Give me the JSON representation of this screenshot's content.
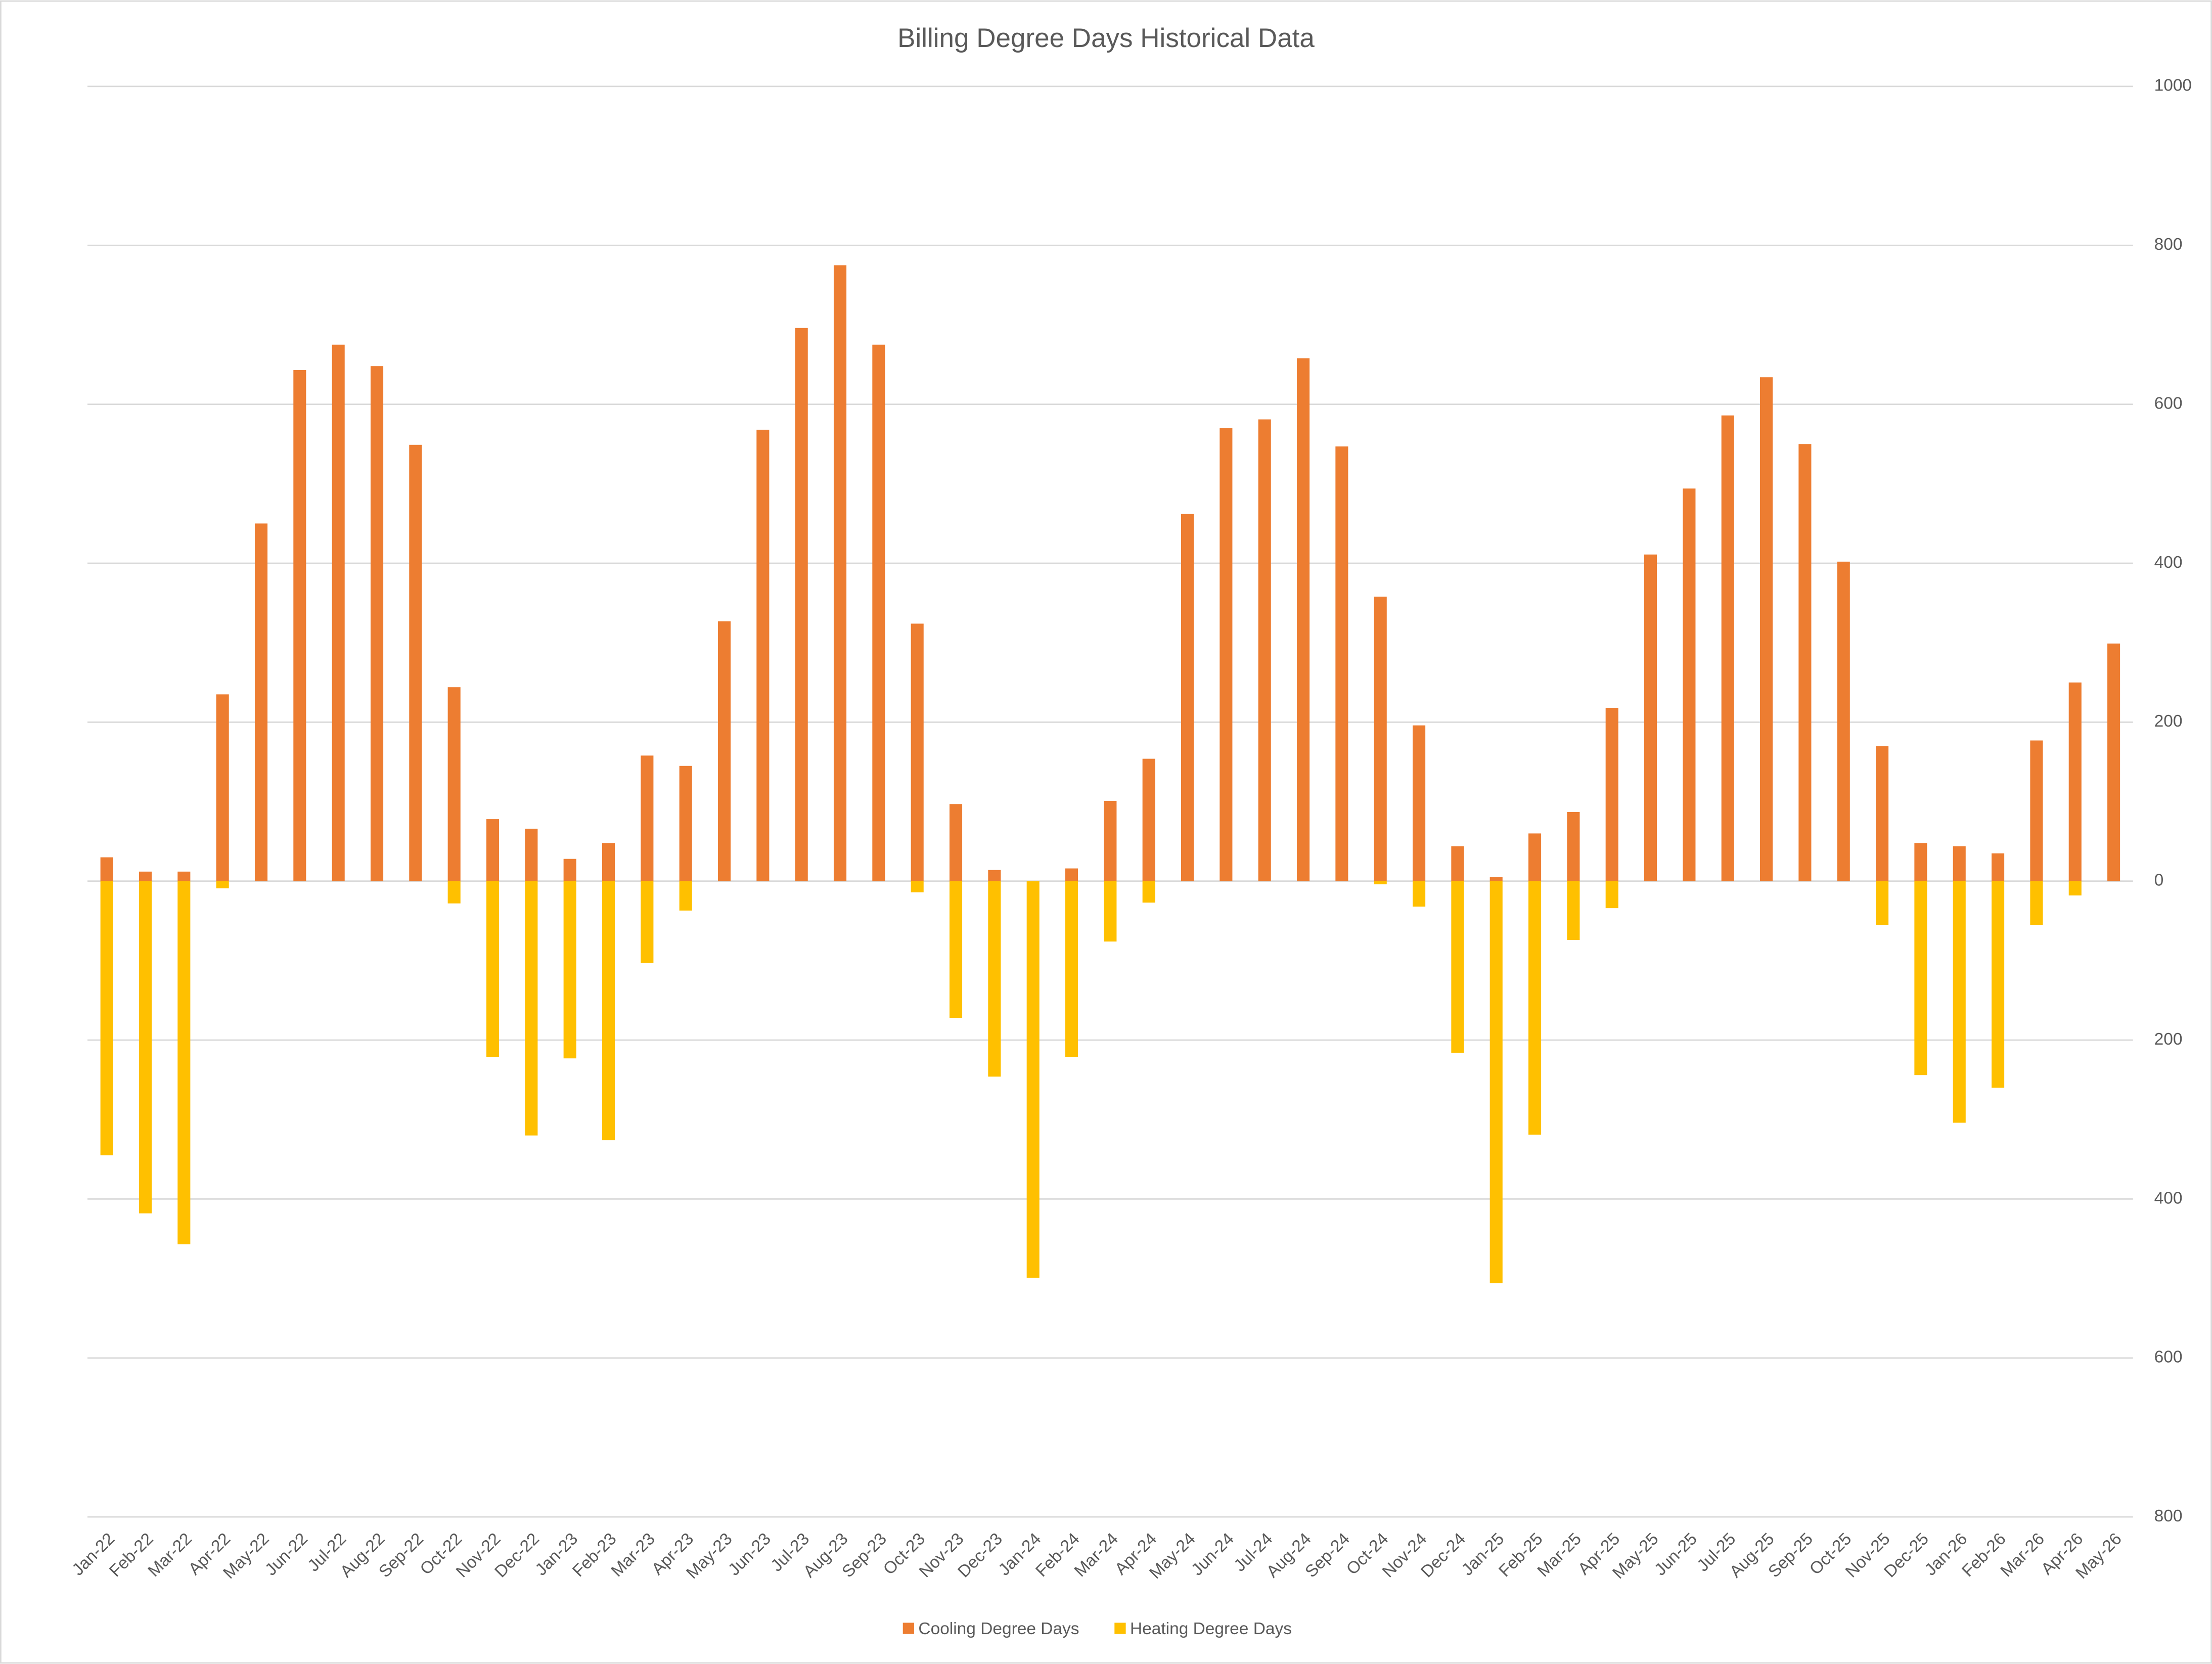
{
  "chart_data": {
    "type": "bar",
    "title": "Billing Degree Days Historical Data",
    "categories": [
      "Jan-22",
      "Feb-22",
      "Mar-22",
      "Apr-22",
      "May-22",
      "Jun-22",
      "Jul-22",
      "Aug-22",
      "Sep-22",
      "Oct-22",
      "Nov-22",
      "Dec-22",
      "Jan-23",
      "Feb-23",
      "Mar-23",
      "Apr-23",
      "May-23",
      "Jun-23",
      "Jul-23",
      "Aug-23",
      "Sep-23",
      "Oct-23",
      "Nov-23",
      "Dec-23",
      "Jan-24",
      "Feb-24",
      "Mar-24",
      "Apr-24",
      "May-24",
      "Jun-24",
      "Jul-24",
      "Aug-24",
      "Sep-24",
      "Oct-24",
      "Nov-24",
      "Dec-24",
      "Jan-25",
      "Feb-25",
      "Mar-25",
      "Apr-25",
      "May-25",
      "Jun-25",
      "Jul-25",
      "Aug-25",
      "Sep-25",
      "Oct-25",
      "Nov-25",
      "Dec-25",
      "Jan-26",
      "Feb-26",
      "Mar-26",
      "Apr-26",
      "May-26"
    ],
    "series": [
      {
        "name": "Cooling Degree Days",
        "color": "#ed7d31",
        "values": [
          30,
          12,
          12,
          235,
          450,
          643,
          675,
          648,
          549,
          244,
          78,
          66,
          28,
          48,
          158,
          145,
          327,
          568,
          696,
          775,
          675,
          324,
          97,
          14,
          0,
          16,
          101,
          154,
          462,
          570,
          581,
          658,
          547,
          358,
          196,
          44,
          5,
          60,
          87,
          218,
          411,
          494,
          586,
          634,
          550,
          402,
          170,
          48,
          44,
          35,
          177,
          250,
          299
        ]
      },
      {
        "name": "Heating Degree Days",
        "color": "#ffc000",
        "values": [
          -345,
          -418,
          -457,
          -9,
          0,
          0,
          0,
          0,
          0,
          -28,
          -221,
          -320,
          -223,
          -326,
          -103,
          -37,
          0,
          0,
          0,
          0,
          0,
          -14,
          -172,
          -246,
          -499,
          -221,
          -76,
          -27,
          0,
          0,
          0,
          0,
          0,
          -4,
          -32,
          -216,
          -506,
          -319,
          -74,
          -34,
          0,
          0,
          0,
          0,
          0,
          0,
          -55,
          -244,
          -304,
          -260,
          -55,
          -18,
          0
        ]
      }
    ],
    "ylim": [
      -800,
      1000
    ],
    "yticks": [
      {
        "value": -800,
        "label": "800"
      },
      {
        "value": -600,
        "label": "600"
      },
      {
        "value": -400,
        "label": "400"
      },
      {
        "value": -200,
        "label": "200"
      },
      0,
      200,
      400,
      600,
      800,
      1000
    ],
    "grid": true,
    "legend": "bottom"
  }
}
